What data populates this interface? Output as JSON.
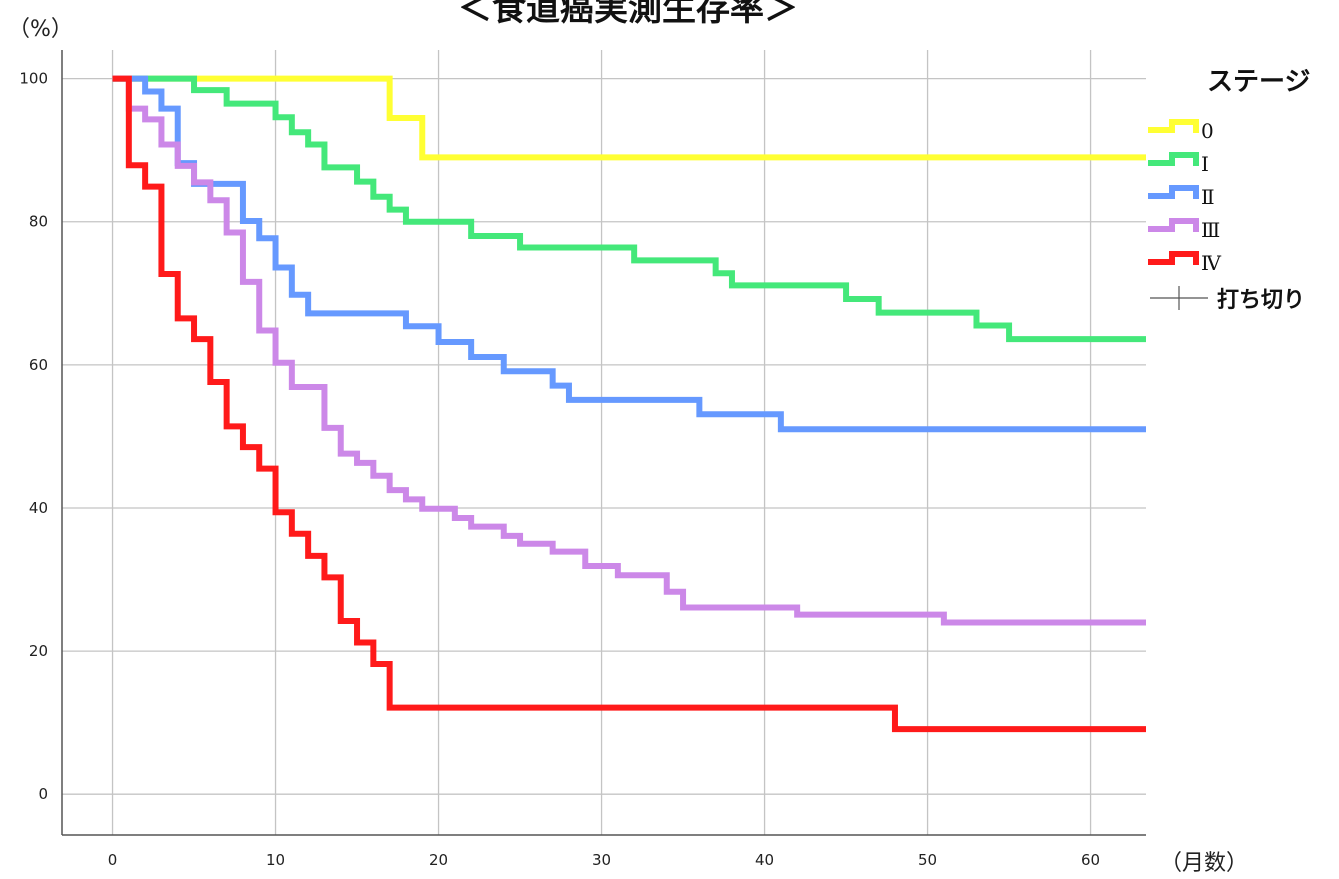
{
  "chart_data": {
    "type": "line",
    "title": "＜食道癌実測生存率＞",
    "ylabel": "（%）",
    "xlabel": "（月数）",
    "xlim": [
      -3.1,
      63.4
    ],
    "ylim": [
      -5.7,
      104
    ],
    "xticks": [
      0,
      10,
      20,
      30,
      40,
      50,
      60
    ],
    "yticks": [
      0,
      20,
      40,
      60,
      80,
      100
    ],
    "grid": true,
    "legend": {
      "title": "ステージ",
      "position": "right",
      "censor_label": "打ち切り"
    },
    "series": [
      {
        "name": "0",
        "color": "#ffff33",
        "x": [
          0,
          17,
          19,
          63.4
        ],
        "y": [
          100,
          94.5,
          89,
          89
        ]
      },
      {
        "name": "Ⅰ",
        "color": "#44e87a",
        "x": [
          0,
          5,
          7,
          10,
          11,
          12,
          13,
          15,
          16,
          17,
          18,
          22,
          25,
          32,
          37,
          38,
          45,
          47,
          53,
          55,
          63.4
        ],
        "y": [
          100,
          98.4,
          96.5,
          94.6,
          92.5,
          90.8,
          87.6,
          85.6,
          83.5,
          81.7,
          80,
          78,
          76.4,
          74.6,
          72.8,
          71.1,
          69.2,
          67.3,
          65.5,
          63.6,
          63.6
        ]
      },
      {
        "name": "Ⅱ",
        "color": "#6699ff",
        "x": [
          0,
          2,
          3,
          4,
          5,
          8,
          9,
          10,
          11,
          12,
          18,
          20,
          22,
          24,
          27,
          28,
          36,
          41,
          63.4
        ],
        "y": [
          100,
          98.2,
          95.8,
          88.2,
          85.3,
          80.1,
          77.7,
          73.6,
          69.8,
          67.2,
          65.4,
          63.2,
          61.1,
          59.1,
          57.1,
          55.1,
          53.1,
          51,
          51
        ]
      },
      {
        "name": "Ⅲ",
        "color": "#cc88e8",
        "x": [
          0,
          1,
          2,
          3,
          4,
          5,
          6,
          7,
          8,
          9,
          10,
          11,
          13,
          14,
          15,
          16,
          17,
          18,
          19,
          21,
          22,
          24,
          25,
          27,
          29,
          31,
          34,
          35,
          42,
          51,
          63.4
        ],
        "y": [
          100,
          95.8,
          94.3,
          90.8,
          87.8,
          85.5,
          83,
          78.5,
          71.6,
          64.8,
          60.3,
          56.9,
          51.2,
          47.6,
          46.3,
          44.5,
          42.5,
          41.2,
          39.9,
          38.6,
          37.4,
          36.1,
          35,
          33.9,
          31.9,
          30.6,
          28.3,
          26.1,
          25.1,
          24,
          24
        ]
      },
      {
        "name": "Ⅳ",
        "color": "#ff1a1a",
        "x": [
          0,
          1,
          2,
          3,
          4,
          5,
          6,
          7,
          8,
          9,
          10,
          11,
          12,
          13,
          14,
          15,
          16,
          17,
          48,
          63.4
        ],
        "y": [
          100,
          87.9,
          84.9,
          72.7,
          66.5,
          63.6,
          57.6,
          51.4,
          48.5,
          45.5,
          39.4,
          36.4,
          33.3,
          30.3,
          24.2,
          21.2,
          18.2,
          12.1,
          9.1,
          9.1
        ]
      }
    ]
  }
}
